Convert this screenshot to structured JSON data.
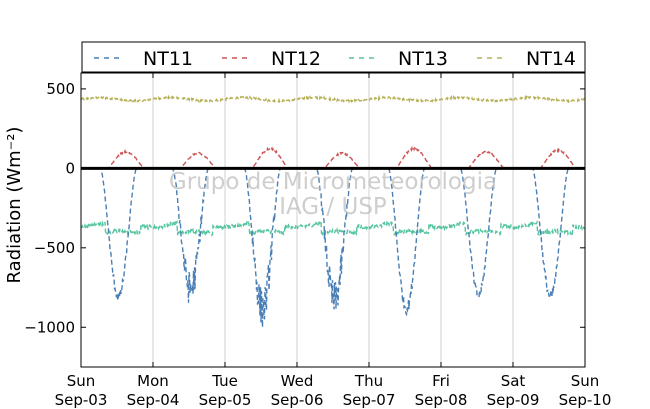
{
  "chart_data": {
    "type": "line",
    "ylabel": "Radiation (Wm⁻²)",
    "ylim": [
      -1250,
      600
    ],
    "yticks": [
      500,
      0,
      -500,
      -1000
    ],
    "ytick_labels": [
      "500",
      "0",
      "−500",
      "−1000"
    ],
    "x_range_days": [
      "Sun Sep-03",
      "Sun Sep-10"
    ],
    "xticks": [
      {
        "day": "Sun",
        "date": "Sep-03"
      },
      {
        "day": "Mon",
        "date": "Sep-04"
      },
      {
        "day": "Tue",
        "date": "Sep-05"
      },
      {
        "day": "Wed",
        "date": "Sep-06"
      },
      {
        "day": "Thu",
        "date": "Sep-07"
      },
      {
        "day": "Fri",
        "date": "Sep-08"
      },
      {
        "day": "Sat",
        "date": "Sep-09"
      },
      {
        "day": "Sun",
        "date": "Sep-10"
      }
    ],
    "grid": "vertical",
    "legend_position": "top",
    "watermark": [
      "Grupo de Micrometeorologia",
      "IAG / USP"
    ],
    "series": [
      {
        "name": "NT11",
        "color": "#4a7fb5",
        "style": "dashed",
        "night_value": 0,
        "daily_minima": [
          -840,
          -870,
          -1010,
          -950,
          -920,
          -830,
          -840
        ],
        "peak_hour": 12.5
      },
      {
        "name": "NT12",
        "color": "#cc5555",
        "style": "dashed",
        "night_value": 0,
        "daily_maxima": [
          110,
          100,
          130,
          100,
          130,
          110,
          120
        ],
        "peak_hour": 15
      },
      {
        "name": "NT13",
        "color": "#55c4a0",
        "style": "dashed",
        "night_value": -350,
        "day_value": -410,
        "range": [
          -300,
          -420
        ]
      },
      {
        "name": "NT14",
        "color": "#b5b055",
        "style": "dashed",
        "mean_value": 435,
        "range": [
          420,
          450
        ]
      }
    ]
  }
}
